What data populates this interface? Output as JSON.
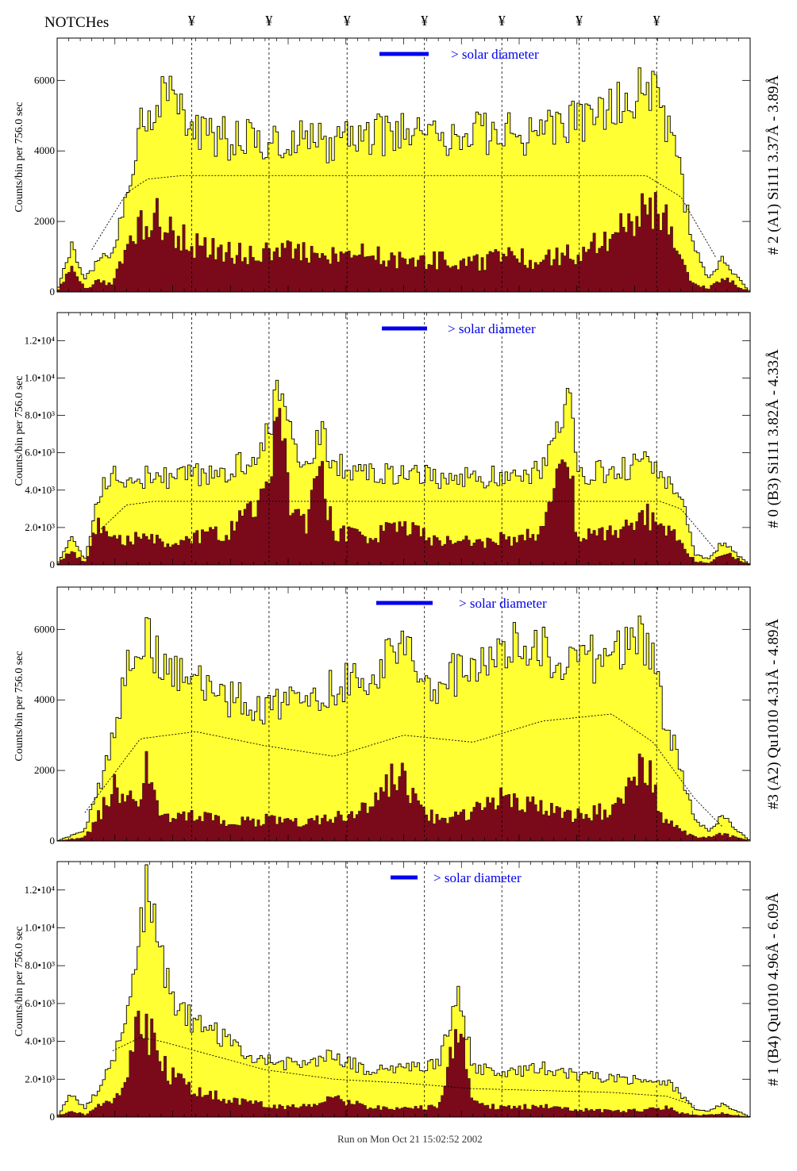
{
  "header": {
    "title": "NOTCHes",
    "notch_symbol": "¥",
    "notch_positions": [
      0.142,
      0.263,
      0.385,
      0.506,
      0.627,
      0.748,
      0.869
    ]
  },
  "footer": {
    "text": "Run on Mon Oct 21 15:02:52 2002"
  },
  "colors": {
    "fill_total": "#ffff33",
    "fill_source": "#7a0a1a",
    "outline": "#000000",
    "legend": "#0000ee",
    "line_labels": "#0000aa"
  },
  "chart_data": [
    {
      "type": "area",
      "title": "# 2 (A1) Si111  3.37Å - 3.89Å",
      "ylabel": "Counts/bin per   756.0 sec",
      "yticks": [
        "0",
        "2000",
        "4000",
        "6000"
      ],
      "ytick_values": [
        0,
        2000,
        4000,
        6000
      ],
      "ylim": [
        0,
        7200
      ],
      "legend": "> solar diameter",
      "series": [
        {
          "name": "total",
          "x": [
            0.0,
            0.02,
            0.04,
            0.06,
            0.08,
            0.1,
            0.12,
            0.14,
            0.16,
            0.2,
            0.25,
            0.3,
            0.35,
            0.4,
            0.45,
            0.5,
            0.55,
            0.6,
            0.65,
            0.7,
            0.75,
            0.8,
            0.85,
            0.88,
            0.9,
            0.92,
            0.94,
            0.96,
            1.0
          ],
          "values": [
            0,
            1300,
            400,
            900,
            1200,
            2600,
            4600,
            5400,
            5500,
            4700,
            4300,
            4300,
            4400,
            4200,
            4400,
            4500,
            4400,
            4500,
            4500,
            4500,
            4800,
            5100,
            6000,
            4800,
            3200,
            1200,
            400,
            900,
            0
          ]
        },
        {
          "name": "source",
          "x": [
            0.0,
            0.02,
            0.04,
            0.06,
            0.08,
            0.1,
            0.12,
            0.14,
            0.16,
            0.2,
            0.25,
            0.3,
            0.35,
            0.4,
            0.45,
            0.5,
            0.55,
            0.6,
            0.65,
            0.7,
            0.75,
            0.8,
            0.85,
            0.88,
            0.9,
            0.92,
            0.94,
            0.96,
            1.0
          ],
          "values": [
            0,
            700,
            100,
            300,
            200,
            1300,
            2000,
            2200,
            1700,
            1300,
            1100,
            1100,
            1200,
            1000,
            1100,
            900,
            900,
            800,
            1000,
            900,
            1100,
            1500,
            2600,
            2000,
            800,
            200,
            100,
            400,
            0
          ]
        },
        {
          "name": "model",
          "x": [
            0.05,
            0.1,
            0.13,
            0.18,
            0.85,
            0.9,
            0.95
          ],
          "values": [
            1200,
            2800,
            3200,
            3300,
            3300,
            2700,
            1000
          ]
        }
      ]
    },
    {
      "type": "area",
      "title": "# 0 (B3) Si111  3.82Å - 4.33Å",
      "ylabel": "Counts/bin per   756.0 sec",
      "yticks": [
        "0",
        "2.0•10³",
        "4.0•10³",
        "6.0•10³",
        "8.0•10³",
        "1.0•10⁴",
        "1.2•10⁴"
      ],
      "ytick_values": [
        0,
        2000,
        4000,
        6000,
        8000,
        10000,
        12000
      ],
      "ylim": [
        0,
        13500
      ],
      "legend": "> solar diameter",
      "series": [
        {
          "name": "total",
          "x": [
            0.0,
            0.02,
            0.04,
            0.06,
            0.08,
            0.1,
            0.15,
            0.2,
            0.25,
            0.3,
            0.32,
            0.34,
            0.36,
            0.38,
            0.4,
            0.45,
            0.5,
            0.55,
            0.6,
            0.65,
            0.7,
            0.74,
            0.75,
            0.8,
            0.85,
            0.9,
            0.92,
            0.94,
            0.96,
            1.0
          ],
          "values": [
            0,
            1500,
            300,
            3800,
            4800,
            4600,
            4700,
            4800,
            5000,
            6500,
            9500,
            6200,
            5200,
            7600,
            5300,
            4800,
            5000,
            4700,
            4600,
            4700,
            5000,
            9000,
            4800,
            5000,
            5400,
            3800,
            600,
            300,
            1200,
            0
          ]
        },
        {
          "name": "source",
          "x": [
            0.0,
            0.02,
            0.04,
            0.06,
            0.08,
            0.1,
            0.15,
            0.2,
            0.25,
            0.3,
            0.32,
            0.34,
            0.36,
            0.38,
            0.4,
            0.45,
            0.5,
            0.55,
            0.6,
            0.65,
            0.7,
            0.74,
            0.75,
            0.8,
            0.85,
            0.9,
            0.92,
            0.94,
            0.96,
            1.0
          ],
          "values": [
            0,
            800,
            100,
            2200,
            1600,
            1400,
            1300,
            1500,
            1800,
            3500,
            7500,
            2600,
            2000,
            5000,
            1800,
            1500,
            2000,
            1300,
            1200,
            1400,
            1600,
            6500,
            1500,
            1700,
            2600,
            1200,
            200,
            100,
            700,
            0
          ]
        },
        {
          "name": "model",
          "x": [
            0.06,
            0.1,
            0.14,
            0.87,
            0.9,
            0.95
          ],
          "values": [
            1800,
            3200,
            3400,
            3400,
            3000,
            800
          ]
        }
      ]
    },
    {
      "type": "area",
      "title": "#3 (A2) Qu1010  4.31Å - 4.89Å",
      "ylabel": "Counts/bin per   756.0 sec",
      "yticks": [
        "0",
        "2000",
        "4000",
        "6000"
      ],
      "ytick_values": [
        0,
        2000,
        4000,
        6000
      ],
      "ylim": [
        0,
        7200
      ],
      "legend": "> solar diameter",
      "series": [
        {
          "name": "total",
          "x": [
            0.0,
            0.04,
            0.06,
            0.08,
            0.1,
            0.12,
            0.13,
            0.15,
            0.2,
            0.25,
            0.3,
            0.35,
            0.4,
            0.45,
            0.5,
            0.52,
            0.55,
            0.6,
            0.65,
            0.7,
            0.75,
            0.8,
            0.85,
            0.87,
            0.9,
            0.92,
            0.94,
            0.96,
            1.0
          ],
          "values": [
            0,
            300,
            1500,
            2800,
            4700,
            5200,
            6200,
            4800,
            4500,
            4000,
            3800,
            3900,
            4300,
            4800,
            5600,
            4700,
            4500,
            5000,
            5500,
            5400,
            5000,
            5300,
            5800,
            4000,
            2000,
            600,
            300,
            700,
            0
          ]
        },
        {
          "name": "source",
          "x": [
            0.0,
            0.04,
            0.06,
            0.08,
            0.1,
            0.12,
            0.13,
            0.15,
            0.2,
            0.25,
            0.3,
            0.35,
            0.4,
            0.45,
            0.5,
            0.52,
            0.55,
            0.6,
            0.65,
            0.7,
            0.75,
            0.8,
            0.85,
            0.87,
            0.9,
            0.92,
            0.94,
            0.96,
            1.0
          ],
          "values": [
            0,
            100,
            700,
            1500,
            1200,
            1000,
            2500,
            600,
            700,
            500,
            600,
            500,
            700,
            900,
            2100,
            900,
            600,
            800,
            1300,
            900,
            700,
            900,
            2200,
            800,
            300,
            100,
            100,
            200,
            0
          ]
        },
        {
          "name": "model",
          "x": [
            0.04,
            0.12,
            0.2,
            0.3,
            0.4,
            0.5,
            0.6,
            0.7,
            0.8,
            0.86,
            0.92,
            0.96
          ],
          "values": [
            800,
            2900,
            3100,
            2700,
            2400,
            3000,
            2800,
            3400,
            3600,
            2800,
            1200,
            400
          ]
        }
      ]
    },
    {
      "type": "area",
      "title": "# 1 (B4) Qu1010 4.96Å - 6.09Å",
      "ylabel": "Counts/bin per   756.0 sec",
      "yticks": [
        "0",
        "2.0•10³",
        "4.0•10³",
        "6.0•10³",
        "8.0•10³",
        "1.0•10⁴",
        "1.2•10⁴"
      ],
      "ytick_values": [
        0,
        2000,
        4000,
        6000,
        8000,
        10000,
        12000
      ],
      "ylim": [
        0,
        13500
      ],
      "legend": "> solar diameter",
      "series": [
        {
          "name": "total",
          "x": [
            0.0,
            0.02,
            0.04,
            0.06,
            0.08,
            0.1,
            0.12,
            0.13,
            0.15,
            0.17,
            0.2,
            0.25,
            0.3,
            0.35,
            0.4,
            0.45,
            0.5,
            0.55,
            0.58,
            0.6,
            0.65,
            0.7,
            0.75,
            0.8,
            0.85,
            0.88,
            0.9,
            0.92,
            0.94,
            0.96,
            1.0
          ],
          "values": [
            0,
            1200,
            500,
            1500,
            3000,
            5000,
            9500,
            12000,
            8500,
            6000,
            5000,
            4000,
            3000,
            2800,
            3200,
            2500,
            2600,
            2700,
            7000,
            2500,
            2400,
            2600,
            2200,
            2000,
            1900,
            1800,
            1200,
            400,
            300,
            700,
            0
          ]
        },
        {
          "name": "source",
          "x": [
            0.0,
            0.02,
            0.04,
            0.06,
            0.08,
            0.1,
            0.12,
            0.13,
            0.15,
            0.17,
            0.2,
            0.25,
            0.3,
            0.35,
            0.4,
            0.45,
            0.5,
            0.55,
            0.58,
            0.6,
            0.65,
            0.7,
            0.75,
            0.8,
            0.85,
            0.88,
            0.9,
            0.92,
            0.94,
            0.96,
            1.0
          ],
          "values": [
            0,
            400,
            100,
            600,
            1000,
            2000,
            5500,
            4500,
            3000,
            2000,
            1400,
            900,
            600,
            500,
            1000,
            500,
            400,
            600,
            4600,
            700,
            500,
            600,
            400,
            300,
            400,
            500,
            200,
            100,
            100,
            200,
            0
          ]
        },
        {
          "name": "model",
          "x": [
            0.08,
            0.12,
            0.15,
            0.2,
            0.3,
            0.4,
            0.5,
            0.6,
            0.7,
            0.8,
            0.88,
            0.92
          ],
          "values": [
            3500,
            4200,
            4000,
            3500,
            2500,
            2000,
            1800,
            1500,
            1400,
            1300,
            1100,
            600
          ]
        }
      ]
    }
  ]
}
